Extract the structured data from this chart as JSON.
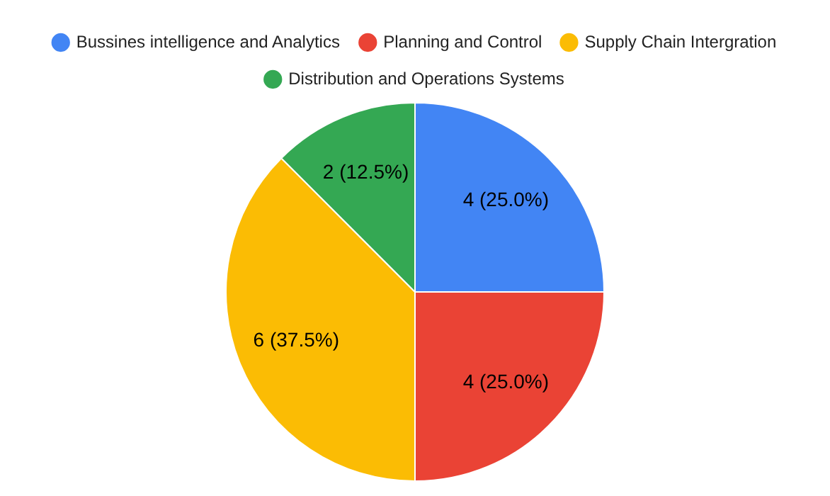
{
  "chart_data": {
    "type": "pie",
    "categories": [
      "Bussines intelligence and Analytics",
      "Planning and Control",
      "Supply Chain Intergration",
      "Distribution and Operations Systems"
    ],
    "values": [
      4,
      4,
      6,
      2
    ],
    "colors": [
      "#4285f4",
      "#ea4335",
      "#fbbc04",
      "#34a853"
    ],
    "value_labels": [
      "4 (25.0%)",
      "4 (25.0%)",
      "6 (37.5%)",
      "2 (12.5%)"
    ],
    "legend": "top"
  }
}
